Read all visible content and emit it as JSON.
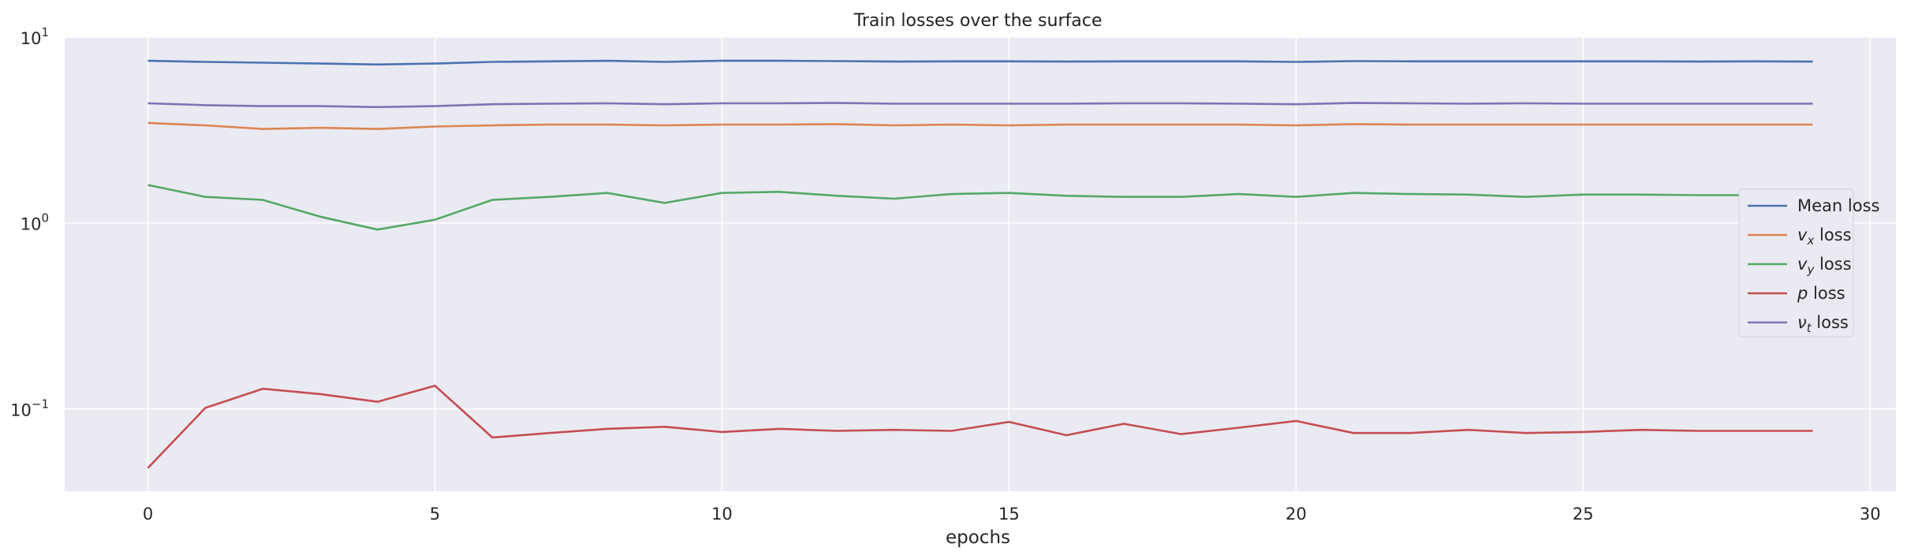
{
  "chart_data": {
    "type": "line",
    "title": "Train losses over the surface",
    "xlabel": "epochs",
    "ylabel": "",
    "yscale": "log",
    "xlim": [
      -1.45,
      30.45
    ],
    "ylim": [
      0.036,
      10
    ],
    "xticks": [
      0,
      5,
      10,
      15,
      20,
      25,
      30
    ],
    "xtick_labels": [
      "0",
      "5",
      "10",
      "15",
      "20",
      "25",
      "30"
    ],
    "yticks": [
      0.1,
      1,
      10
    ],
    "ytick_labels": [
      {
        "base": "10",
        "exp": "−1"
      },
      {
        "base": "10",
        "exp": "0"
      },
      {
        "base": "10",
        "exp": "1"
      }
    ],
    "grid": true,
    "legend_position": "center-right",
    "x": [
      0,
      1,
      2,
      3,
      4,
      5,
      6,
      7,
      8,
      9,
      10,
      11,
      12,
      13,
      14,
      15,
      16,
      17,
      18,
      19,
      20,
      21,
      22,
      23,
      24,
      25,
      26,
      27,
      28,
      29
    ],
    "series": [
      {
        "name": "Mean loss",
        "legend": {
          "sym": "",
          "sub": "",
          "suffix": "Mean loss"
        },
        "color": "#4c72b0",
        "values": [
          7.45,
          7.35,
          7.28,
          7.2,
          7.12,
          7.2,
          7.35,
          7.4,
          7.45,
          7.35,
          7.45,
          7.45,
          7.42,
          7.38,
          7.4,
          7.4,
          7.38,
          7.4,
          7.4,
          7.4,
          7.35,
          7.42,
          7.4,
          7.4,
          7.4,
          7.4,
          7.4,
          7.38,
          7.4,
          7.38
        ]
      },
      {
        "name": "v_x loss",
        "legend": {
          "sym": "v",
          "sub": "x",
          "suffix": " loss"
        },
        "color": "#dd8452",
        "values": [
          3.45,
          3.35,
          3.2,
          3.25,
          3.2,
          3.3,
          3.35,
          3.38,
          3.38,
          3.35,
          3.38,
          3.38,
          3.4,
          3.35,
          3.38,
          3.35,
          3.38,
          3.38,
          3.38,
          3.38,
          3.35,
          3.4,
          3.38,
          3.38,
          3.38,
          3.38,
          3.38,
          3.38,
          3.38,
          3.38
        ]
      },
      {
        "name": "v_y loss",
        "legend": {
          "sym": "v",
          "sub": "y",
          "suffix": " loss"
        },
        "color": "#55a868",
        "values": [
          1.6,
          1.38,
          1.33,
          1.08,
          0.92,
          1.04,
          1.33,
          1.38,
          1.45,
          1.28,
          1.45,
          1.47,
          1.4,
          1.35,
          1.43,
          1.45,
          1.4,
          1.38,
          1.38,
          1.43,
          1.38,
          1.45,
          1.43,
          1.42,
          1.38,
          1.42,
          1.42,
          1.41,
          1.41,
          1.41
        ]
      },
      {
        "name": "p loss",
        "legend": {
          "sym": "p",
          "sub": "",
          "suffix": " loss"
        },
        "color": "#c44e52",
        "values": [
          0.048,
          0.101,
          0.128,
          0.12,
          0.109,
          0.133,
          0.07,
          0.074,
          0.078,
          0.08,
          0.075,
          0.078,
          0.076,
          0.077,
          0.076,
          0.085,
          0.072,
          0.083,
          0.073,
          0.079,
          0.086,
          0.074,
          0.074,
          0.077,
          0.074,
          0.075,
          0.077,
          0.076,
          0.076,
          0.076
        ]
      },
      {
        "name": "ν_t loss",
        "legend": {
          "sym": "ν",
          "sub": "t",
          "suffix": " loss"
        },
        "color": "#8172b3",
        "values": [
          4.4,
          4.3,
          4.25,
          4.25,
          4.2,
          4.25,
          4.35,
          4.38,
          4.4,
          4.35,
          4.4,
          4.4,
          4.42,
          4.38,
          4.38,
          4.38,
          4.38,
          4.4,
          4.4,
          4.38,
          4.35,
          4.42,
          4.4,
          4.38,
          4.4,
          4.38,
          4.38,
          4.38,
          4.38,
          4.38
        ]
      }
    ]
  }
}
